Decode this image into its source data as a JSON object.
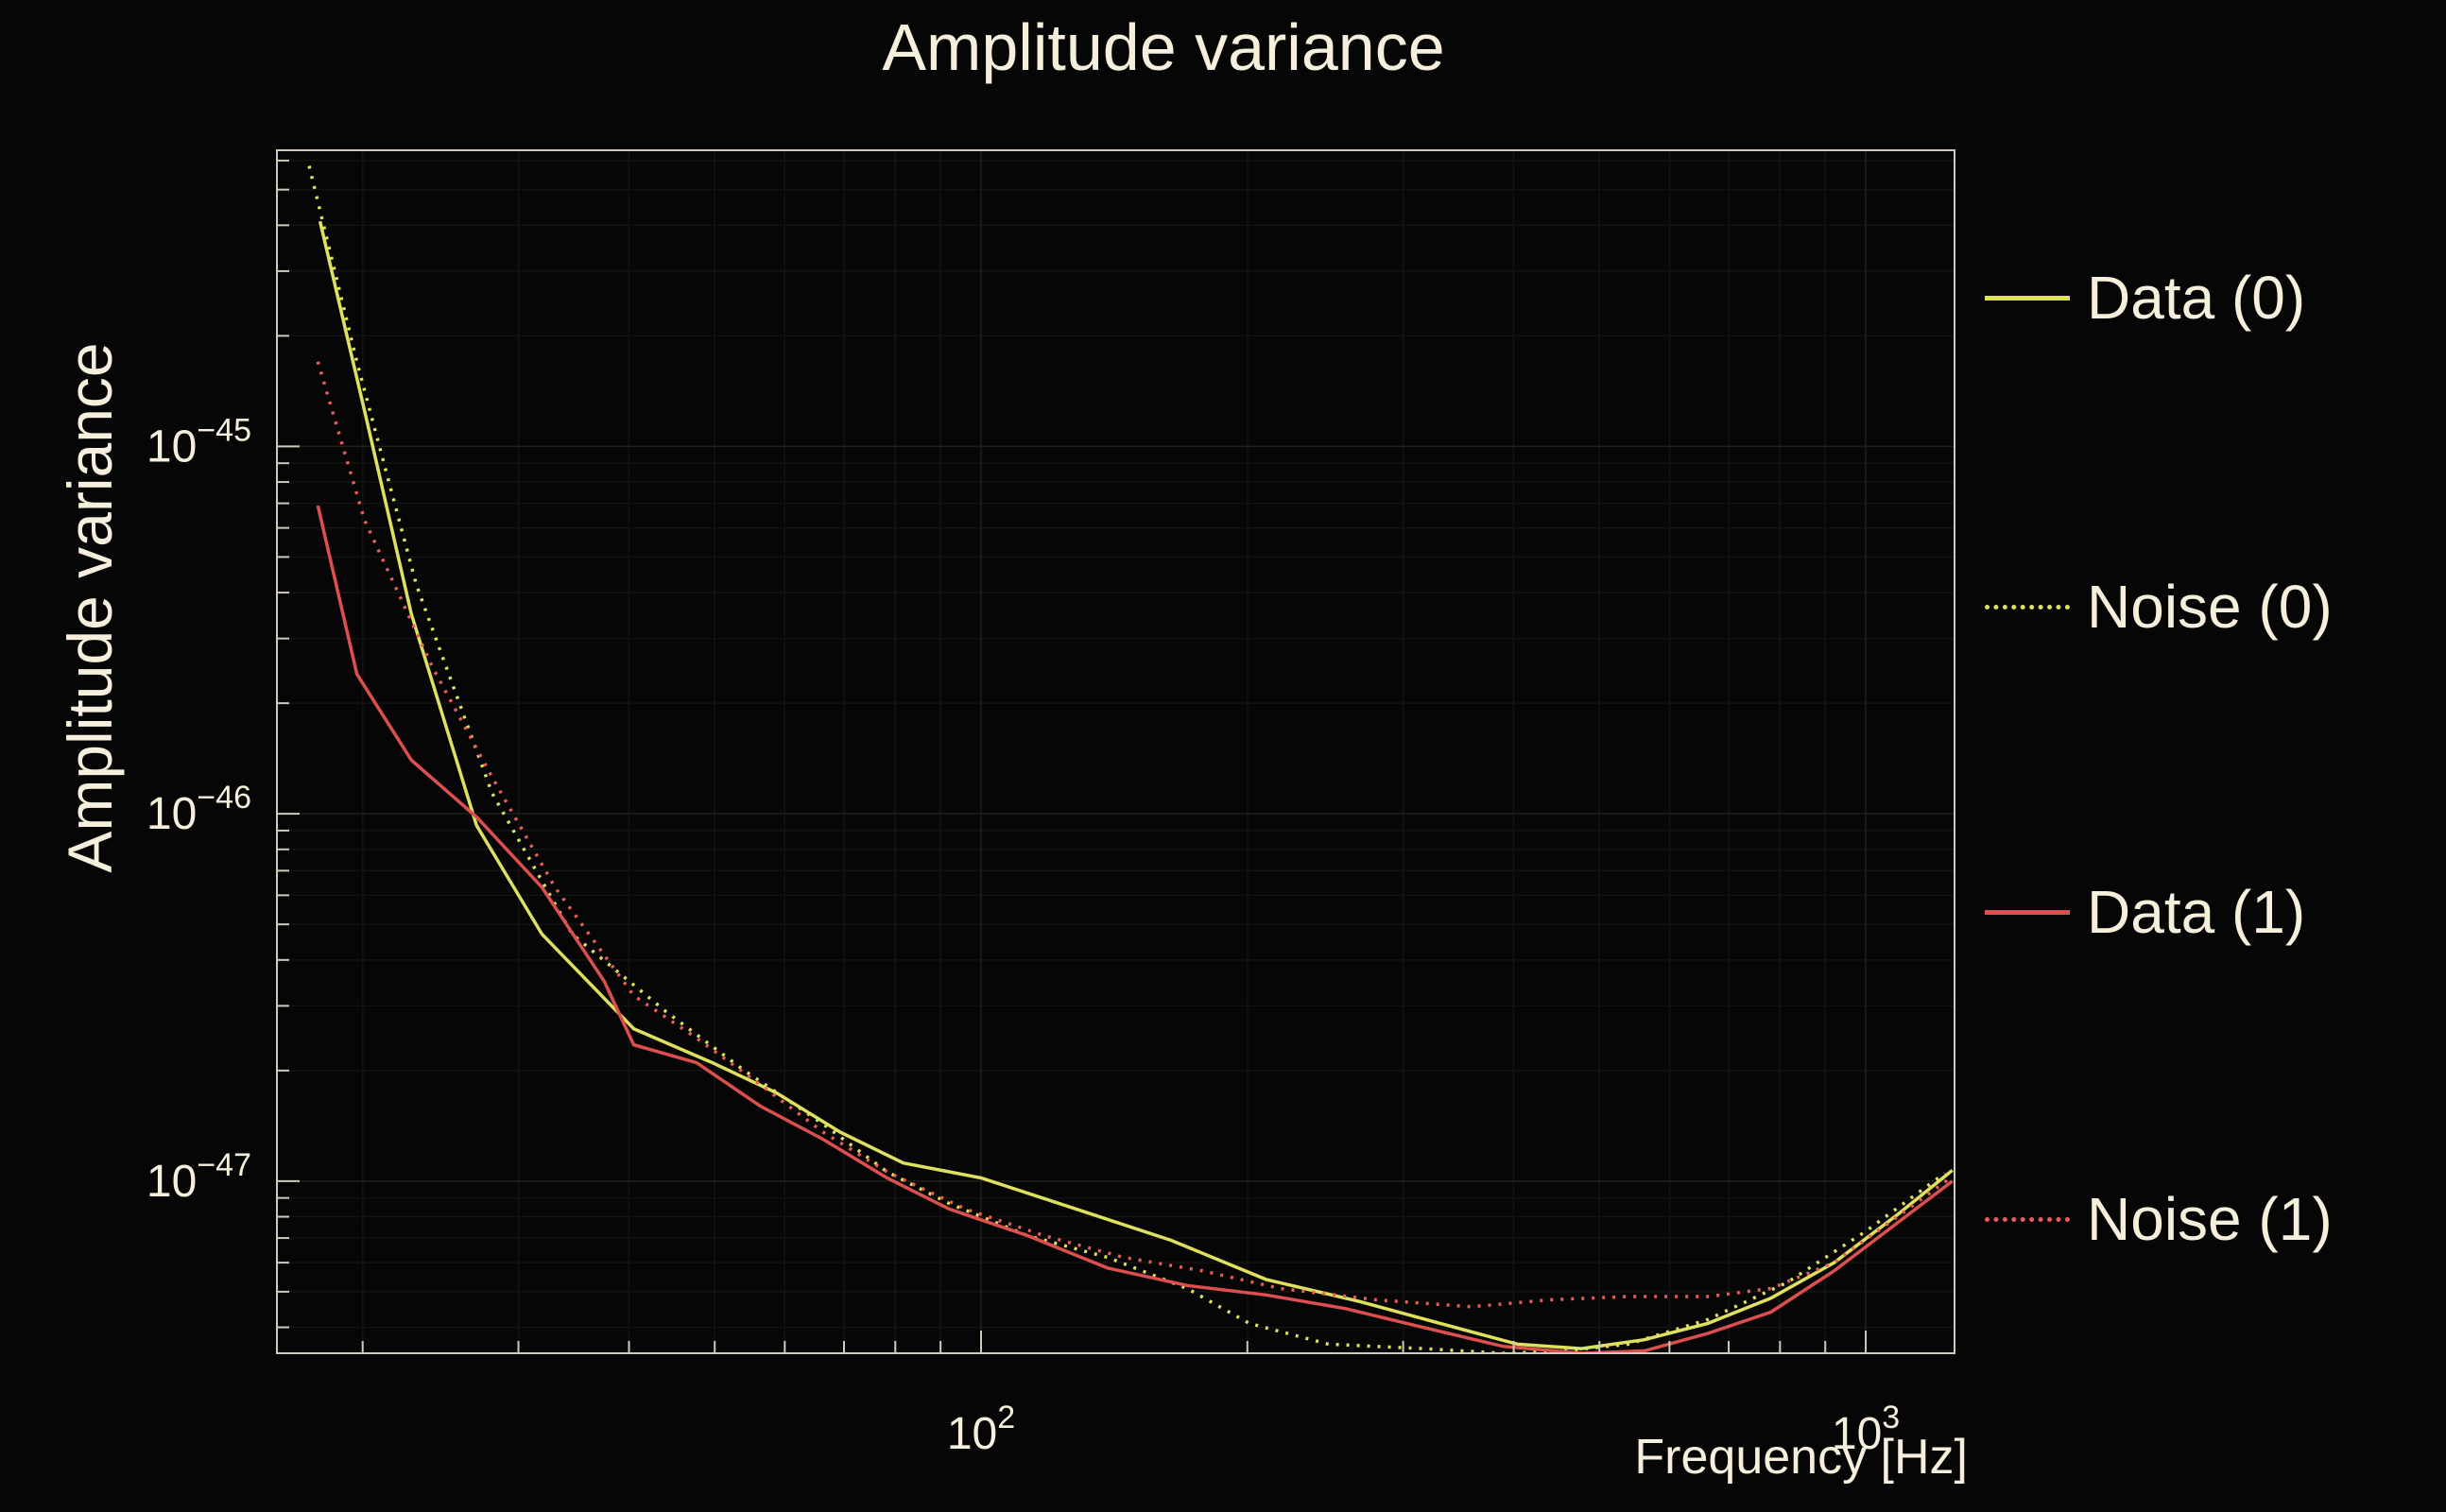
{
  "colors": {
    "background": "#060606",
    "text": "#f5efdb",
    "frame": "#cfcabb",
    "grid_major": "#20201a",
    "grid_minor": "#131310",
    "yellow": "#dfe15e",
    "red": "#dd4f4f",
    "red_dotted": "#e85c5c"
  },
  "chart_data": {
    "type": "line",
    "title": "Amplitude variance",
    "xlabel": "Frequency [Hz]",
    "ylabel": "Amplitude variance",
    "x_scale": "log",
    "y_scale": "log",
    "xlim": [
      16,
      1260
    ],
    "ylim": [
      3.4e-48,
      6.4e-45
    ],
    "grid": true,
    "legend_position": "right",
    "x_ticks": [
      {
        "value": 100,
        "base": "10",
        "exp": "2"
      },
      {
        "value": 1000,
        "base": "10",
        "exp": "3"
      }
    ],
    "y_ticks": [
      {
        "value": 1e-45,
        "base": "10",
        "exp": "−45"
      },
      {
        "value": 1e-46,
        "base": "10",
        "exp": "−46"
      },
      {
        "value": 1e-47,
        "base": "10",
        "exp": "−47"
      }
    ],
    "series": [
      {
        "name": "Data (0)",
        "color": "#dfe15e",
        "style": "solid",
        "points": [
          [
            17.9,
            4.1e-45
          ],
          [
            20.1,
            1.25e-45
          ],
          [
            22.7,
            3.5e-46
          ],
          [
            26.9,
            9.3e-47
          ],
          [
            31.9,
            4.7e-47
          ],
          [
            40.5,
            2.6e-47
          ],
          [
            49.7,
            2.1e-47
          ],
          [
            58.7,
            1.74e-47
          ],
          [
            69.3,
            1.36e-47
          ],
          [
            81.7,
            1.12e-47
          ],
          [
            100,
            1.02e-47
          ],
          [
            128,
            8.4e-48
          ],
          [
            164,
            6.9e-48
          ],
          [
            210,
            5.4e-48
          ],
          [
            268,
            4.7e-48
          ],
          [
            343,
            4e-48
          ],
          [
            404,
            3.6e-48
          ],
          [
            477,
            3.5e-48
          ],
          [
            562,
            3.7e-48
          ],
          [
            663,
            4.1e-48
          ],
          [
            781,
            4.8e-48
          ],
          [
            921,
            6e-48
          ],
          [
            1086,
            8.1e-48
          ],
          [
            1253,
            1.07e-47
          ]
        ]
      },
      {
        "name": "Noise (0)",
        "color": "#dfe15e",
        "style": "dotted",
        "points": [
          [
            17.4,
            5.8e-45
          ],
          [
            19.7,
            1.7e-45
          ],
          [
            23.0,
            4.2e-46
          ],
          [
            28.0,
            1.14e-46
          ],
          [
            34.5,
            4.7e-47
          ],
          [
            44.0,
            2.9e-47
          ],
          [
            54.0,
            2e-47
          ],
          [
            66.3,
            1.43e-47
          ],
          [
            78.3,
            1.06e-47
          ],
          [
            92.0,
            8.7e-48
          ],
          [
            113,
            7.1e-48
          ],
          [
            139,
            6.2e-48
          ],
          [
            171,
            5.1e-48
          ],
          [
            201,
            4.1e-48
          ],
          [
            247,
            3.6e-48
          ],
          [
            316,
            3.5e-48
          ],
          [
            389,
            3.4e-48
          ],
          [
            458,
            3.45e-48
          ],
          [
            539,
            3.6e-48
          ],
          [
            663,
            4.2e-48
          ],
          [
            815,
            5.3e-48
          ],
          [
            1000,
            7.3e-48
          ],
          [
            1228,
            1.05e-47
          ]
        ]
      },
      {
        "name": "Data (1)",
        "color": "#dd4f4f",
        "style": "solid",
        "points": [
          [
            17.8,
            6.9e-46
          ],
          [
            19.7,
            2.4e-46
          ],
          [
            22.7,
            1.4e-46
          ],
          [
            26.9,
            9.8e-47
          ],
          [
            31.9,
            6.3e-47
          ],
          [
            37.5,
            3.5e-47
          ],
          [
            40.5,
            2.35e-47
          ],
          [
            47.7,
            2.1e-47
          ],
          [
            56.3,
            1.6e-47
          ],
          [
            66.3,
            1.3e-47
          ],
          [
            78.3,
            1.02e-47
          ],
          [
            92.0,
            8.4e-48
          ],
          [
            113,
            7.1e-48
          ],
          [
            139,
            5.8e-48
          ],
          [
            171,
            5.2e-48
          ],
          [
            210,
            4.9e-48
          ],
          [
            258,
            4.5e-48
          ],
          [
            316,
            4e-48
          ],
          [
            389,
            3.55e-48
          ],
          [
            477,
            3.4e-48
          ],
          [
            562,
            3.45e-48
          ],
          [
            663,
            3.85e-48
          ],
          [
            781,
            4.4e-48
          ],
          [
            921,
            5.7e-48
          ],
          [
            1086,
            7.7e-48
          ],
          [
            1253,
            1e-47
          ]
        ]
      },
      {
        "name": "Noise (1)",
        "color": "#e85c5c",
        "style": "dotted",
        "points": [
          [
            17.8,
            1.7e-45
          ],
          [
            20.1,
            6.3e-46
          ],
          [
            24.0,
            2.5e-46
          ],
          [
            28.0,
            1.26e-46
          ],
          [
            33.0,
            6.3e-47
          ],
          [
            40.5,
            3.2e-47
          ],
          [
            47.7,
            2.45e-47
          ],
          [
            56.3,
            1.83e-47
          ],
          [
            66.3,
            1.36e-47
          ],
          [
            78.3,
            1.06e-47
          ],
          [
            96.0,
            8.4e-48
          ],
          [
            118,
            7.1e-48
          ],
          [
            145,
            6.2e-48
          ],
          [
            178,
            5.7e-48
          ],
          [
            218,
            5.1e-48
          ],
          [
            280,
            4.75e-48
          ],
          [
            358,
            4.55e-48
          ],
          [
            439,
            4.75e-48
          ],
          [
            539,
            4.85e-48
          ],
          [
            663,
            4.85e-48
          ],
          [
            781,
            5.1e-48
          ],
          [
            921,
            6e-48
          ],
          [
            1086,
            8e-48
          ],
          [
            1253,
            1.03e-47
          ]
        ]
      }
    ]
  }
}
